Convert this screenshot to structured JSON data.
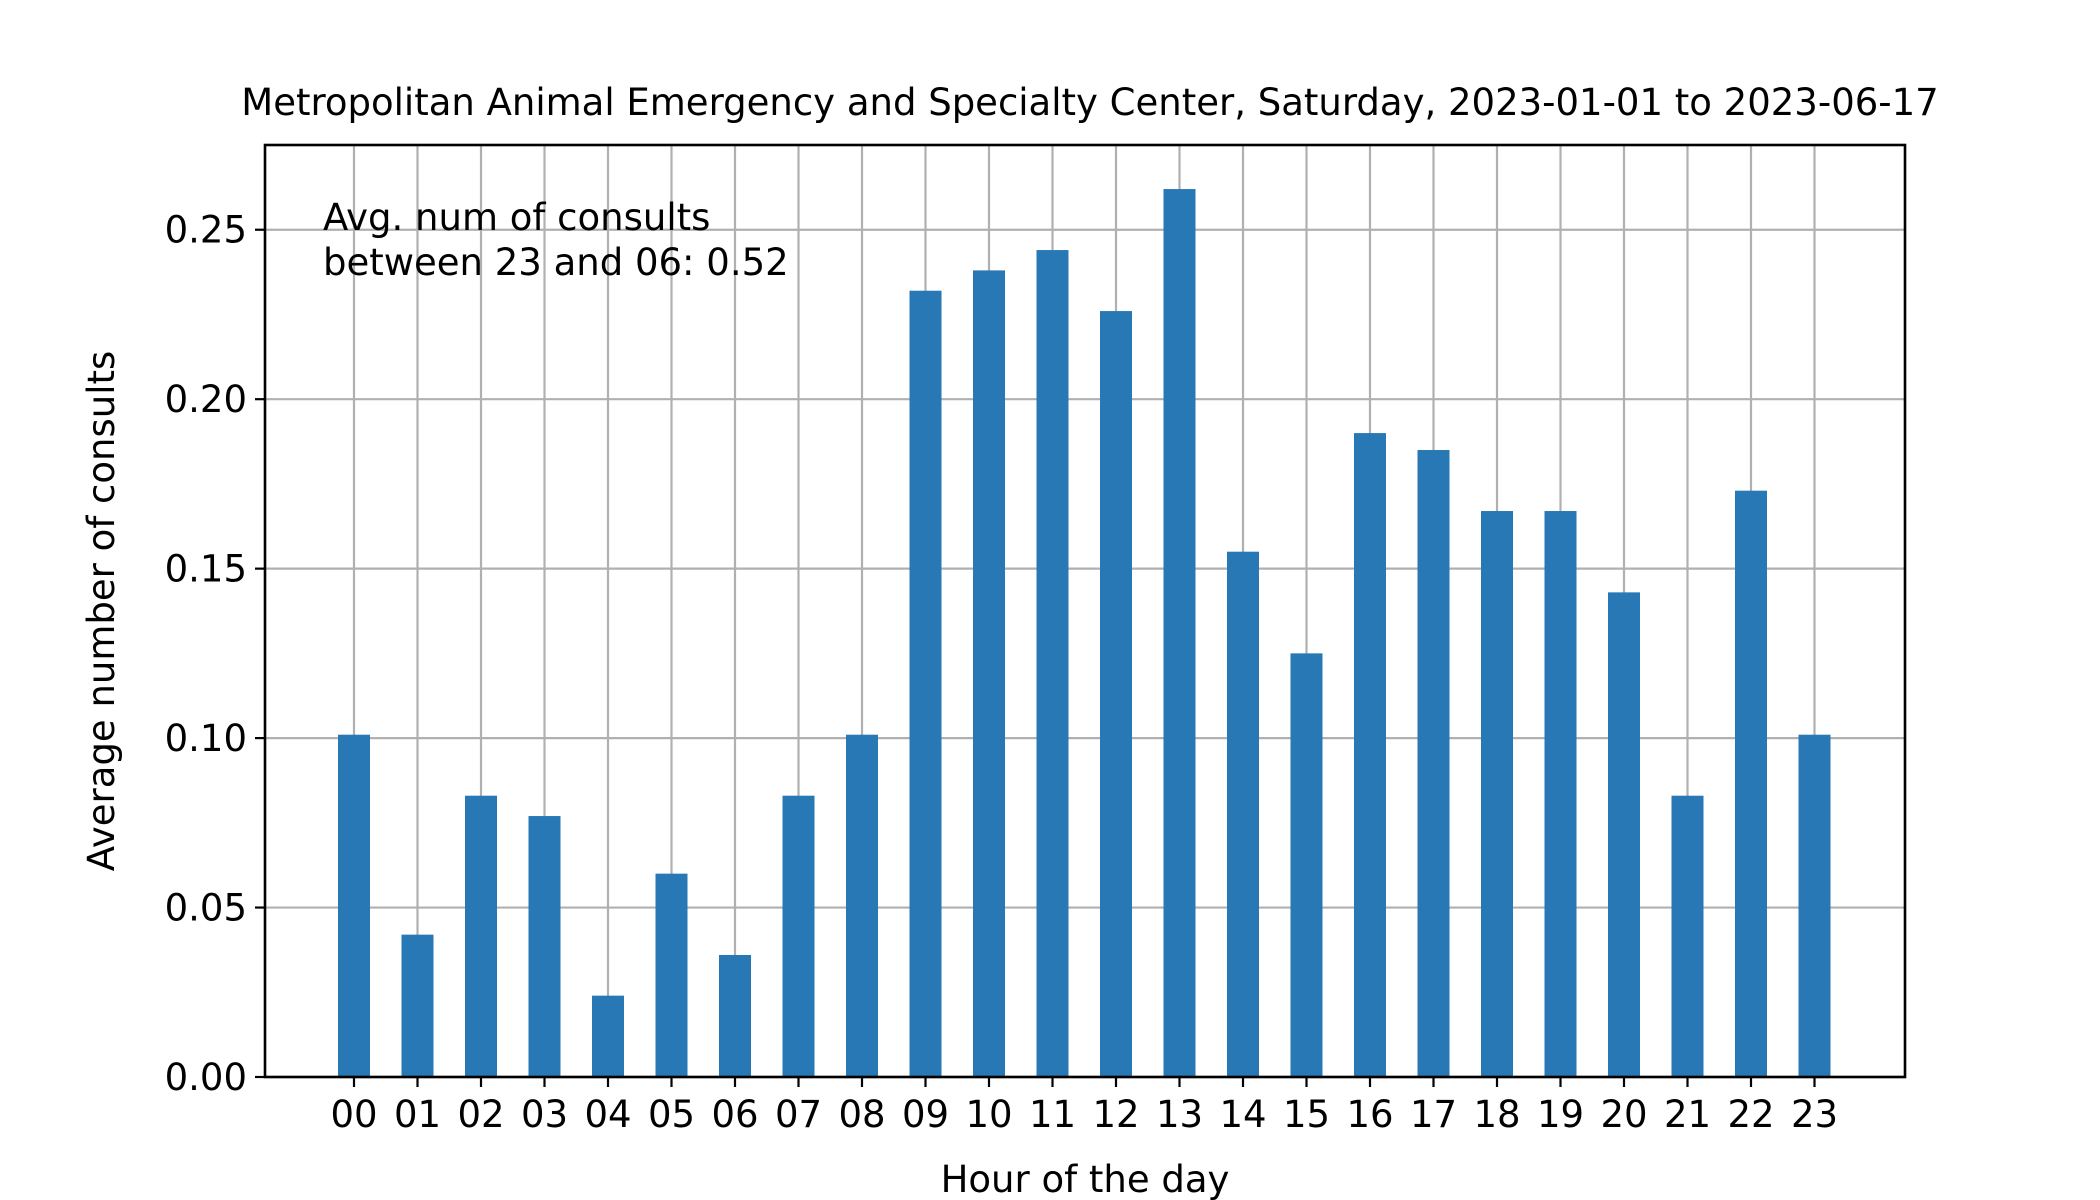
{
  "chart_data": {
    "type": "bar",
    "title": "Metropolitan Animal Emergency and Specialty Center, Saturday, 2023-01-01 to 2023-06-17",
    "xlabel": "Hour of the day",
    "ylabel": "Average number of consults",
    "categories": [
      "00",
      "01",
      "02",
      "03",
      "04",
      "05",
      "06",
      "07",
      "08",
      "09",
      "10",
      "11",
      "12",
      "13",
      "14",
      "15",
      "16",
      "17",
      "18",
      "19",
      "20",
      "21",
      "22",
      "23"
    ],
    "values": [
      0.101,
      0.042,
      0.083,
      0.077,
      0.024,
      0.06,
      0.036,
      0.083,
      0.101,
      0.232,
      0.238,
      0.244,
      0.226,
      0.262,
      0.155,
      0.125,
      0.19,
      0.185,
      0.167,
      0.167,
      0.143,
      0.083,
      0.173,
      0.101
    ],
    "ylim": [
      0,
      0.275
    ],
    "yticks": [
      0.0,
      0.05,
      0.1,
      0.15,
      0.2,
      0.25
    ],
    "ytick_labels": [
      "0.00",
      "0.05",
      "0.10",
      "0.15",
      "0.20",
      "0.25"
    ],
    "grid": true,
    "bar_color": "#2878b5",
    "grid_color": "#b0b0b0",
    "annotation": {
      "line1": "Avg. num of consults",
      "line2": "between 23 and 06: 0.52",
      "position": "top-left"
    }
  }
}
